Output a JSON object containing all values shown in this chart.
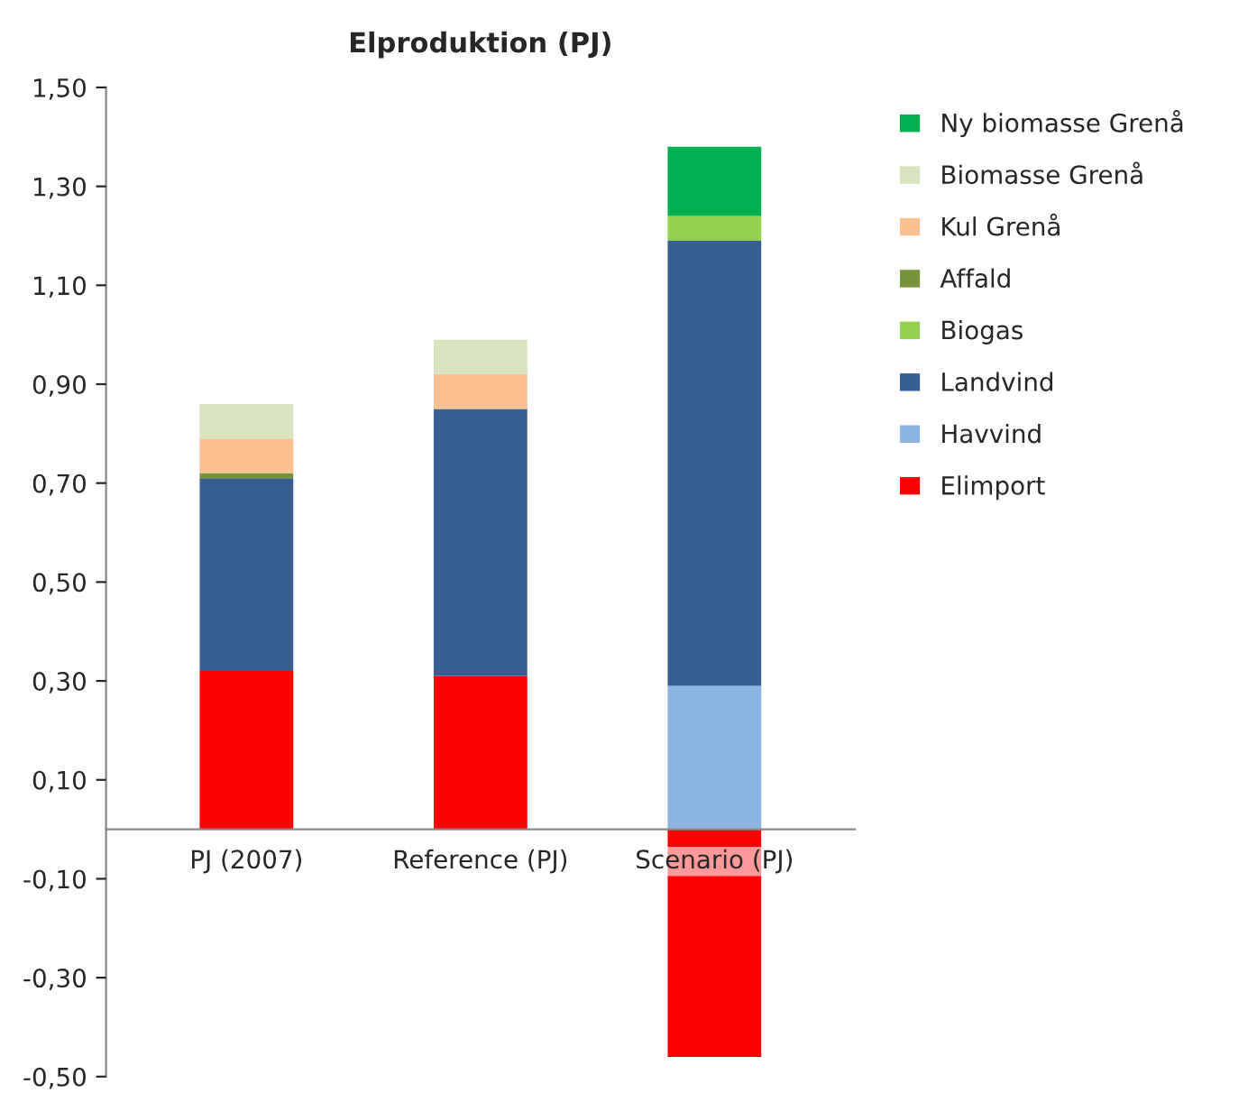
{
  "chart_data": {
    "type": "bar",
    "title": "Elproduktion (PJ)",
    "stacked": true,
    "categories": [
      "PJ (2007)",
      "Reference (PJ)",
      "Scenario (PJ)"
    ],
    "series": [
      {
        "name": "Elimport",
        "color": "#ff0000",
        "values": [
          0.32,
          0.31,
          -0.46
        ]
      },
      {
        "name": "Havvind",
        "color": "#8eb4e3",
        "values": [
          null,
          null,
          0.29
        ]
      },
      {
        "name": "Landvind",
        "color": "#376092",
        "values": [
          0.39,
          0.54,
          0.9
        ]
      },
      {
        "name": "Biogas",
        "color": "#92d050",
        "values": [
          null,
          null,
          0.05
        ]
      },
      {
        "name": "Affald",
        "color": "#77933c",
        "values": [
          0.01,
          null,
          null
        ]
      },
      {
        "name": "Kul Grenå",
        "color": "#fac090",
        "values": [
          0.07,
          0.07,
          null
        ]
      },
      {
        "name": "Biomasse Grenå",
        "color": "#d7e4bd",
        "values": [
          0.07,
          0.07,
          null
        ]
      },
      {
        "name": "Ny biomasse Grenå",
        "color": "#00b050",
        "values": [
          null,
          null,
          0.14
        ]
      }
    ],
    "ylim": [
      -0.5,
      1.5
    ],
    "yticks": [
      {
        "value": -0.5,
        "label": "-0,50"
      },
      {
        "value": -0.3,
        "label": "-0,30"
      },
      {
        "value": -0.1,
        "label": "-0,10"
      },
      {
        "value": 0.1,
        "label": "0,10"
      },
      {
        "value": 0.3,
        "label": "0,30"
      },
      {
        "value": 0.5,
        "label": "0,50"
      },
      {
        "value": 0.7,
        "label": "0,70"
      },
      {
        "value": 0.9,
        "label": "0,90"
      },
      {
        "value": 1.1,
        "label": "1,10"
      },
      {
        "value": 1.3,
        "label": "1,30"
      },
      {
        "value": 1.5,
        "label": "1,50"
      }
    ],
    "grid": false,
    "legend": "right"
  }
}
